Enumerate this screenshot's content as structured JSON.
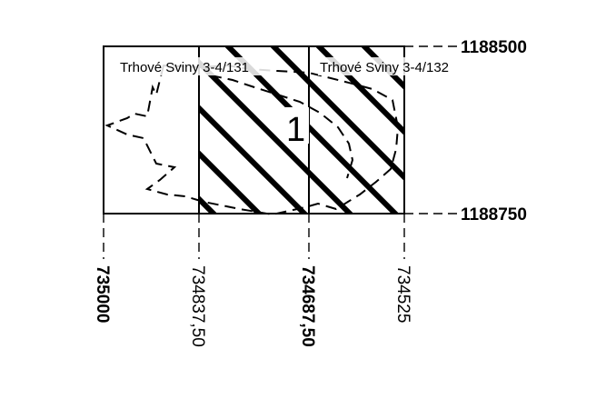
{
  "map": {
    "sheets": [
      {
        "name": "Trhové Sviny 3-4/131"
      },
      {
        "name": "Trhové Sviny 3-4/132"
      }
    ],
    "area_label": "1",
    "y_coords": [
      {
        "label": "1188500",
        "bold": true
      },
      {
        "label": "1188750",
        "bold": true
      }
    ],
    "x_coords": [
      {
        "label": "735000",
        "bold": true
      },
      {
        "label": "734837,50",
        "bold": false
      },
      {
        "label": "734687,50",
        "bold": true
      },
      {
        "label": "734525",
        "bold": false
      }
    ],
    "colors": {
      "line": "#000000",
      "background": "#ffffff"
    }
  }
}
